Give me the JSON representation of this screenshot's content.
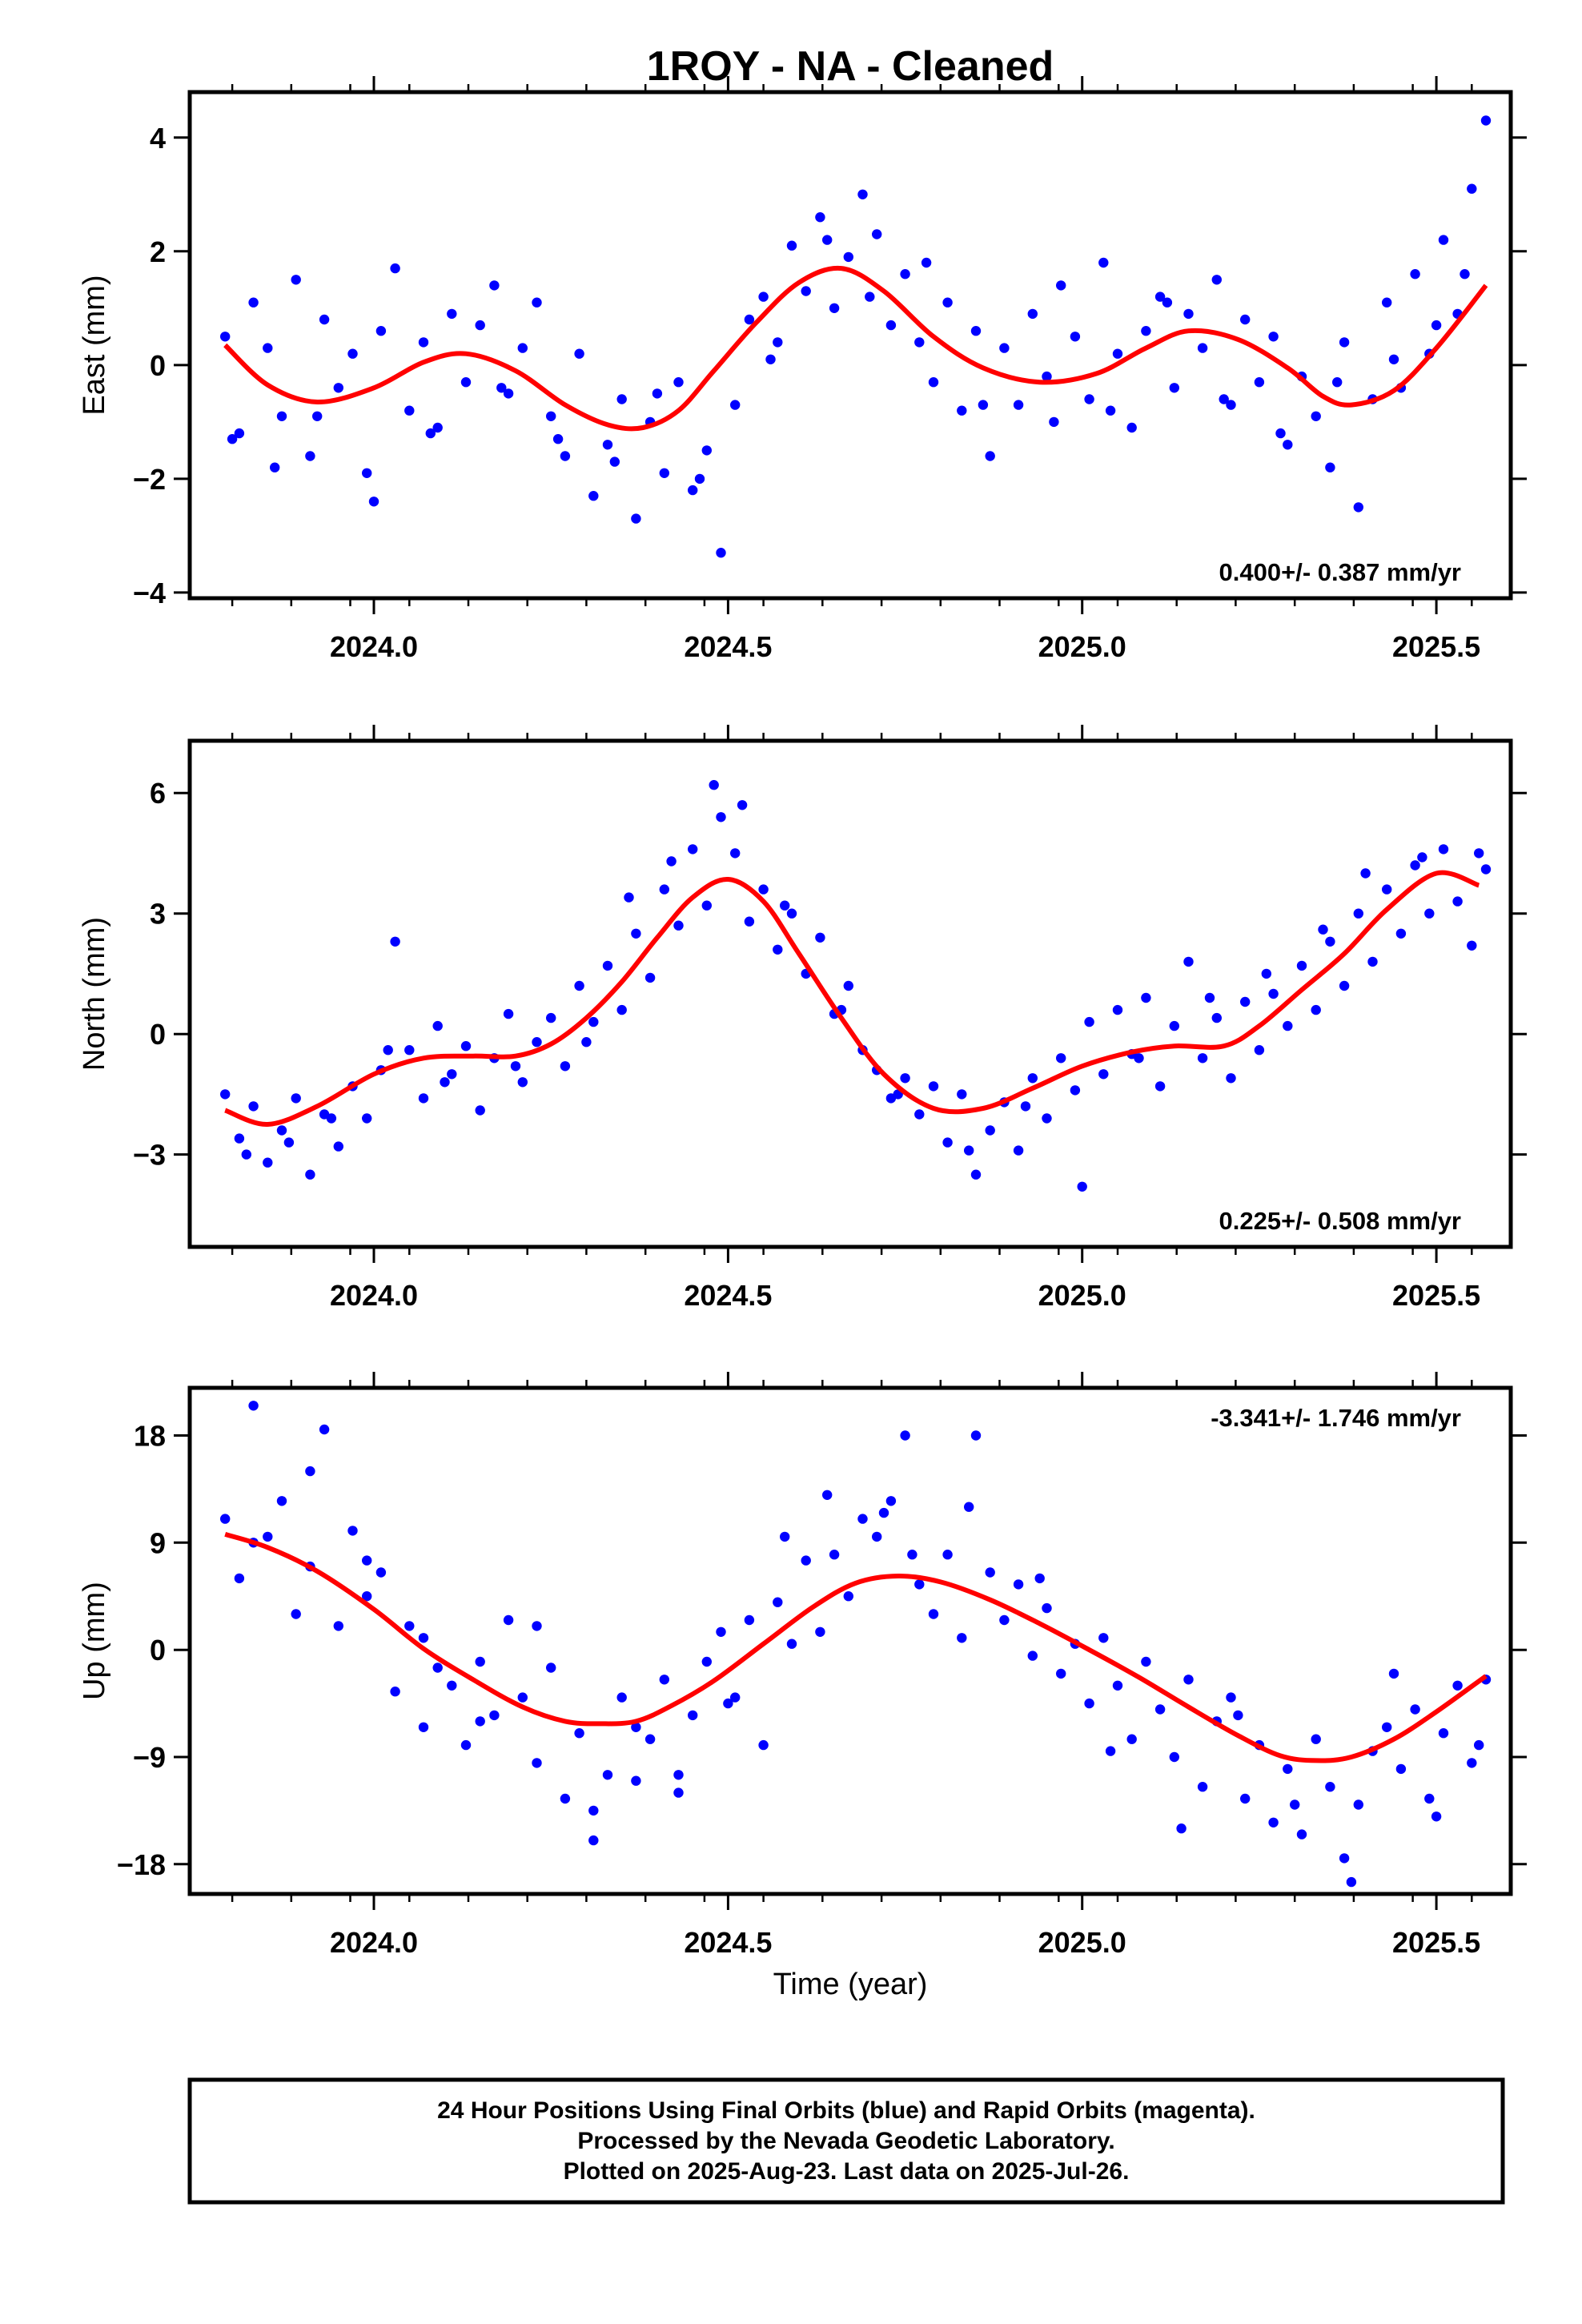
{
  "title": "1ROY  - NA - Cleaned",
  "colors": {
    "final_orbits": "#0000ff",
    "model_fit": "#ff0000",
    "frame": "#000000"
  },
  "chart_data": [
    {
      "type": "scatter",
      "ylabel": "East (mm)",
      "xlim": [
        2023.74,
        2025.605
      ],
      "ylim": [
        -4.1,
        4.8
      ],
      "yticks": [
        -4,
        -2,
        0,
        2,
        4
      ],
      "ytick_labels": [
        "−4",
        "−2",
        "0",
        "2",
        "4"
      ],
      "xticks": [
        2024.0,
        2024.5,
        2025.0,
        2025.5
      ],
      "xtick_labels": [
        "2024.0",
        "2024.5",
        "2025.0",
        "2025.5"
      ],
      "rate": "0.400+/- 0.387 mm/yr",
      "rate_position": "bottom-right",
      "series": [
        {
          "role": "daily positions (blue)",
          "x": [
            2023.79,
            2023.81,
            2023.83,
            2023.85,
            2023.87,
            2023.89,
            2023.91,
            2023.93,
            2023.95,
            2023.97,
            2023.99,
            2024.01,
            2024.03,
            2024.05,
            2024.07,
            2024.09,
            2024.11,
            2024.13,
            2024.15,
            2024.17,
            2024.19,
            2024.21,
            2024.23,
            2024.25,
            2024.27,
            2024.29,
            2024.31,
            2024.33,
            2024.35,
            2024.37,
            2024.39,
            2024.41,
            2024.43,
            2024.45,
            2024.47,
            2024.49,
            2024.51,
            2024.53,
            2024.55,
            2024.57,
            2024.59,
            2024.61,
            2024.63,
            2024.65,
            2024.67,
            2024.69,
            2024.71,
            2024.73,
            2024.75,
            2024.77,
            2024.79,
            2024.81,
            2024.83,
            2024.85,
            2024.87,
            2024.89,
            2024.91,
            2024.93,
            2024.95,
            2024.97,
            2024.99,
            2025.01,
            2025.03,
            2025.05,
            2025.07,
            2025.09,
            2025.11,
            2025.13,
            2025.15,
            2025.17,
            2025.19,
            2025.21,
            2025.23,
            2025.25,
            2025.27,
            2025.29,
            2025.31,
            2025.33,
            2025.35,
            2025.37,
            2025.39,
            2025.41,
            2025.43,
            2025.45,
            2025.47,
            2025.49,
            2025.51,
            2025.53,
            2025.55,
            2025.57,
            2023.8,
            2023.86,
            2023.92,
            2024.0,
            2024.08,
            2024.18,
            2024.26,
            2024.34,
            2024.4,
            2024.46,
            2024.56,
            2024.64,
            2024.7,
            2024.78,
            2024.86,
            2024.96,
            2025.04,
            2025.12,
            2025.2,
            2025.28,
            2025.36,
            2025.44,
            2025.5,
            2025.54
          ],
          "y": [
            0.5,
            -1.2,
            1.1,
            0.3,
            -0.9,
            1.5,
            -1.6,
            0.8,
            -0.4,
            0.2,
            -1.9,
            0.6,
            1.7,
            -0.8,
            0.4,
            -1.1,
            0.9,
            -0.3,
            0.7,
            1.4,
            -0.5,
            0.3,
            1.1,
            -0.9,
            -1.6,
            0.2,
            -2.3,
            -1.4,
            -0.6,
            -2.7,
            -1.0,
            -1.9,
            -0.3,
            -2.2,
            -1.5,
            -3.3,
            -0.7,
            0.8,
            1.2,
            0.4,
            2.1,
            1.3,
            2.6,
            1.0,
            1.9,
            3.0,
            2.3,
            0.7,
            1.6,
            0.4,
            -0.3,
            1.1,
            -0.8,
            0.6,
            -1.6,
            0.3,
            -0.7,
            0.9,
            -0.2,
            1.4,
            0.5,
            -0.6,
            1.8,
            0.2,
            -1.1,
            0.6,
            1.2,
            -0.4,
            0.9,
            0.3,
            1.5,
            -0.7,
            0.8,
            -0.3,
            0.5,
            -1.4,
            -0.2,
            -0.9,
            -1.8,
            0.4,
            -2.5,
            -0.6,
            1.1,
            -0.4,
            1.6,
            0.2,
            2.2,
            0.9,
            3.1,
            4.3,
            -1.3,
            -1.8,
            -0.9,
            -2.4,
            -1.2,
            -0.4,
            -1.3,
            -1.7,
            -0.5,
            -2.0,
            0.1,
            2.2,
            1.2,
            1.8,
            -0.7,
            -1.0,
            -0.8,
            1.1,
            -0.6,
            -1.2,
            -0.3,
            0.1,
            0.7,
            1.6
          ]
        },
        {
          "role": "model fit (red)",
          "x": [
            2023.79,
            2023.85,
            2023.92,
            2024.0,
            2024.07,
            2024.13,
            2024.2,
            2024.27,
            2024.33,
            2024.38,
            2024.43,
            2024.48,
            2024.54,
            2024.6,
            2024.66,
            2024.72,
            2024.79,
            2024.86,
            2024.94,
            2025.02,
            2025.09,
            2025.15,
            2025.22,
            2025.29,
            2025.34,
            2025.38,
            2025.44,
            2025.5,
            2025.57
          ],
          "y": [
            0.35,
            -0.35,
            -0.65,
            -0.4,
            0.05,
            0.2,
            -0.1,
            -0.7,
            -1.05,
            -1.1,
            -0.8,
            -0.1,
            0.75,
            1.45,
            1.7,
            1.3,
            0.5,
            -0.05,
            -0.3,
            -0.15,
            0.3,
            0.6,
            0.45,
            -0.05,
            -0.55,
            -0.7,
            -0.45,
            0.3,
            1.4
          ]
        }
      ]
    },
    {
      "type": "scatter",
      "ylabel": "North (mm)",
      "xlim": [
        2023.74,
        2025.605
      ],
      "ylim": [
        -5.3,
        7.3
      ],
      "yticks": [
        -3,
        0,
        3,
        6
      ],
      "ytick_labels": [
        "−3",
        "0",
        "3",
        "6"
      ],
      "xticks": [
        2024.0,
        2024.5,
        2025.0,
        2025.5
      ],
      "xtick_labels": [
        "2024.0",
        "2024.5",
        "2025.0",
        "2025.5"
      ],
      "rate": "0.225+/- 0.508 mm/yr",
      "rate_position": "bottom-right",
      "series": [
        {
          "role": "daily positions (blue)",
          "x": [
            2023.79,
            2023.81,
            2023.83,
            2023.85,
            2023.87,
            2023.89,
            2023.91,
            2023.93,
            2023.95,
            2023.97,
            2023.99,
            2024.01,
            2024.03,
            2024.05,
            2024.07,
            2024.09,
            2024.11,
            2024.13,
            2024.15,
            2024.17,
            2024.19,
            2024.21,
            2024.23,
            2024.25,
            2024.27,
            2024.29,
            2024.31,
            2024.33,
            2024.35,
            2024.37,
            2024.39,
            2024.41,
            2024.43,
            2024.45,
            2024.47,
            2024.49,
            2024.51,
            2024.53,
            2024.55,
            2024.57,
            2024.59,
            2024.61,
            2024.63,
            2024.65,
            2024.67,
            2024.69,
            2024.71,
            2024.73,
            2024.75,
            2024.77,
            2024.79,
            2024.81,
            2024.83,
            2024.85,
            2024.87,
            2024.89,
            2024.91,
            2024.93,
            2024.95,
            2024.97,
            2024.99,
            2025.01,
            2025.03,
            2025.05,
            2025.07,
            2025.09,
            2025.11,
            2025.13,
            2025.15,
            2025.17,
            2025.19,
            2025.21,
            2025.23,
            2025.25,
            2025.27,
            2025.29,
            2025.31,
            2025.33,
            2025.35,
            2025.37,
            2025.39,
            2025.41,
            2025.43,
            2025.45,
            2025.47,
            2025.49,
            2025.51,
            2025.53,
            2025.55,
            2025.57,
            2023.82,
            2023.88,
            2023.94,
            2024.02,
            2024.1,
            2024.2,
            2024.3,
            2024.36,
            2024.42,
            2024.48,
            2024.52,
            2024.58,
            2024.66,
            2024.74,
            2024.84,
            2024.92,
            2025.0,
            2025.08,
            2025.18,
            2025.26,
            2025.34,
            2025.4,
            2025.48,
            2025.56
          ],
          "y": [
            -1.5,
            -2.6,
            -1.8,
            -3.2,
            -2.4,
            -1.6,
            -3.5,
            -2.0,
            -2.8,
            -1.3,
            -2.1,
            -0.9,
            2.3,
            -0.4,
            -1.6,
            0.2,
            -1.0,
            -0.3,
            -1.9,
            -0.6,
            0.5,
            -1.2,
            -0.2,
            0.4,
            -0.8,
            1.2,
            0.3,
            1.7,
            0.6,
            2.5,
            1.4,
            3.6,
            2.7,
            4.6,
            3.2,
            5.4,
            4.5,
            2.8,
            3.6,
            2.1,
            3.0,
            1.5,
            2.4,
            0.5,
            1.2,
            -0.4,
            -0.9,
            -1.6,
            -1.1,
            -2.0,
            -1.3,
            -2.7,
            -1.5,
            -3.5,
            -2.4,
            -1.7,
            -2.9,
            -1.1,
            -2.1,
            -0.6,
            -1.4,
            0.3,
            -1.0,
            0.6,
            -0.5,
            0.9,
            -1.3,
            0.2,
            1.8,
            -0.6,
            0.4,
            -1.1,
            0.8,
            -0.4,
            1.0,
            0.2,
            1.7,
            0.6,
            2.3,
            1.2,
            3.0,
            1.8,
            3.6,
            2.5,
            4.2,
            3.0,
            4.6,
            3.3,
            2.2,
            4.1,
            -3.0,
            -2.7,
            -2.1,
            -0.4,
            -1.2,
            -0.8,
            -0.2,
            3.4,
            4.3,
            6.2,
            5.7,
            3.2,
            0.6,
            -1.5,
            -2.9,
            -1.8,
            -3.8,
            -0.6,
            0.9,
            1.5,
            2.6,
            4.0,
            4.4,
            4.5
          ]
        },
        {
          "role": "model fit (red)",
          "x": [
            2023.79,
            2023.85,
            2023.92,
            2024.0,
            2024.07,
            2024.14,
            2024.2,
            2024.25,
            2024.3,
            2024.35,
            2024.4,
            2024.45,
            2024.5,
            2024.55,
            2024.6,
            2024.66,
            2024.72,
            2024.79,
            2024.86,
            2024.93,
            2025.0,
            2025.07,
            2025.13,
            2025.2,
            2025.25,
            2025.31,
            2025.37,
            2025.43,
            2025.5,
            2025.56
          ],
          "y": [
            -1.9,
            -2.25,
            -1.8,
            -1.0,
            -0.6,
            -0.55,
            -0.55,
            -0.25,
            0.4,
            1.3,
            2.4,
            3.4,
            3.85,
            3.3,
            2.0,
            0.4,
            -1.0,
            -1.85,
            -1.85,
            -1.35,
            -0.8,
            -0.45,
            -0.3,
            -0.3,
            0.2,
            1.1,
            2.0,
            3.1,
            4.0,
            3.7
          ]
        }
      ]
    },
    {
      "type": "scatter",
      "xlabel": "Time (year)",
      "ylabel": "Up (mm)",
      "xlim": [
        2023.74,
        2025.605
      ],
      "ylim": [
        -20.5,
        22
      ],
      "yticks": [
        -18,
        -9,
        0,
        9,
        18
      ],
      "ytick_labels": [
        "−18",
        "−9",
        "0",
        "9",
        "18"
      ],
      "xticks": [
        2024.0,
        2024.5,
        2025.0,
        2025.5
      ],
      "xtick_labels": [
        "2024.0",
        "2024.5",
        "2025.0",
        "2025.5"
      ],
      "rate": "-3.341+/- 1.746 mm/yr",
      "rate_position": "top-right",
      "series": [
        {
          "role": "daily positions (blue)",
          "x": [
            2023.79,
            2023.81,
            2023.83,
            2023.85,
            2023.87,
            2023.89,
            2023.91,
            2023.93,
            2023.95,
            2023.97,
            2023.99,
            2024.01,
            2024.03,
            2024.05,
            2024.07,
            2024.09,
            2024.11,
            2024.13,
            2024.15,
            2024.17,
            2024.19,
            2024.21,
            2024.23,
            2024.25,
            2024.27,
            2024.29,
            2024.31,
            2024.33,
            2024.35,
            2024.37,
            2024.39,
            2024.41,
            2024.43,
            2024.45,
            2024.47,
            2024.49,
            2024.51,
            2024.53,
            2024.55,
            2024.57,
            2024.59,
            2024.61,
            2024.63,
            2024.65,
            2024.67,
            2024.69,
            2024.71,
            2024.73,
            2024.75,
            2024.77,
            2024.79,
            2024.81,
            2024.83,
            2024.85,
            2024.87,
            2024.89,
            2024.91,
            2024.93,
            2024.95,
            2024.97,
            2024.99,
            2025.01,
            2025.03,
            2025.05,
            2025.07,
            2025.09,
            2025.11,
            2025.13,
            2025.15,
            2025.17,
            2025.19,
            2025.21,
            2025.23,
            2025.25,
            2025.27,
            2025.29,
            2025.31,
            2025.33,
            2025.35,
            2025.37,
            2025.39,
            2025.41,
            2025.43,
            2025.45,
            2025.47,
            2025.49,
            2025.51,
            2025.53,
            2025.55,
            2025.57,
            2023.83,
            2023.91,
            2023.99,
            2024.07,
            2024.15,
            2024.23,
            2024.31,
            2024.37,
            2024.43,
            2024.5,
            2024.58,
            2024.64,
            2024.72,
            2024.76,
            2024.84,
            2024.94,
            2025.04,
            2025.14,
            2025.22,
            2025.3,
            2025.38,
            2025.44,
            2025.5,
            2025.56
          ],
          "y": [
            11.0,
            6.0,
            20.5,
            9.5,
            12.5,
            3.0,
            7.0,
            18.5,
            2.0,
            10.0,
            4.5,
            6.5,
            -3.5,
            2.0,
            -6.5,
            -1.5,
            -3.0,
            -8.0,
            -1.0,
            -5.5,
            2.5,
            -4.0,
            -9.5,
            -1.5,
            -12.5,
            -7.0,
            -16.0,
            -10.5,
            -4.0,
            -11.0,
            -7.5,
            -2.5,
            -12.0,
            -5.5,
            -1.0,
            1.5,
            -4.0,
            2.5,
            -8.0,
            4.0,
            0.5,
            7.5,
            1.5,
            8.0,
            4.5,
            11.0,
            9.5,
            12.5,
            18.0,
            5.5,
            3.0,
            8.0,
            1.0,
            18.0,
            6.5,
            2.5,
            5.5,
            -0.5,
            3.5,
            -2.0,
            0.5,
            -4.5,
            1.0,
            -3.0,
            -7.5,
            -1.0,
            -5.0,
            -9.0,
            -2.5,
            -11.5,
            -6.0,
            -4.0,
            -12.5,
            -8.0,
            -14.5,
            -10.0,
            -15.5,
            -7.5,
            -11.5,
            -17.5,
            -13.0,
            -8.5,
            -6.5,
            -10.0,
            -5.0,
            -12.5,
            -7.0,
            -3.0,
            -9.5,
            -2.5,
            9.0,
            15.0,
            7.5,
            1.0,
            -6.0,
            2.0,
            -13.5,
            -6.5,
            -10.5,
            -4.5,
            9.5,
            13.0,
            11.5,
            8.0,
            12.0,
            6.0,
            -8.5,
            -15.0,
            -5.5,
            -13.0,
            -19.5,
            -2.0,
            -14.0,
            -8.0
          ]
        },
        {
          "role": "model fit (red)",
          "x": [
            2023.79,
            2023.85,
            2023.92,
            2024.0,
            2024.07,
            2024.14,
            2024.21,
            2024.27,
            2024.32,
            2024.37,
            2024.42,
            2024.48,
            2024.55,
            2024.62,
            2024.68,
            2024.74,
            2024.8,
            2024.87,
            2024.94,
            2025.01,
            2025.08,
            2025.15,
            2025.22,
            2025.28,
            2025.33,
            2025.38,
            2025.44,
            2025.5,
            2025.57
          ],
          "y": [
            9.7,
            8.6,
            6.6,
            3.4,
            0.1,
            -2.5,
            -4.8,
            -6.0,
            -6.2,
            -6.0,
            -4.7,
            -2.6,
            0.5,
            3.6,
            5.6,
            6.2,
            5.7,
            4.2,
            2.2,
            0.0,
            -2.3,
            -4.8,
            -7.2,
            -8.9,
            -9.3,
            -9.0,
            -7.5,
            -5.2,
            -2.2
          ]
        }
      ]
    }
  ],
  "footer": {
    "line1": "24 Hour Positions Using Final Orbits (blue) and Rapid Orbits (magenta).",
    "line2": "Processed by the Nevada Geodetic Laboratory.",
    "line3": "Plotted on 2025-Aug-23. Last data on 2025-Jul-26."
  }
}
